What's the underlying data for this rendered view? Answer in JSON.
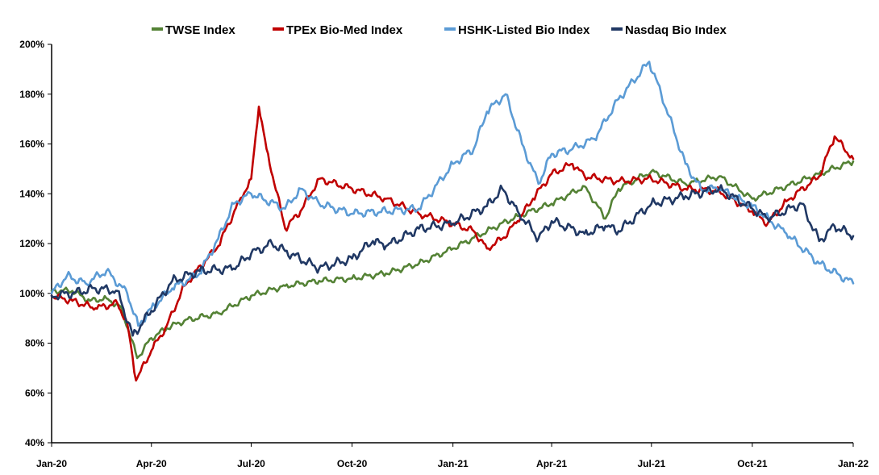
{
  "chart_data": {
    "type": "line",
    "title": "",
    "xlabel": "",
    "ylabel": "",
    "ylim": [
      0.4,
      2.0
    ],
    "y_ticks": [
      0.4,
      0.6,
      0.8,
      1.0,
      1.2,
      1.4,
      1.6,
      1.8,
      2.0
    ],
    "y_tick_labels": [
      "40%",
      "60%",
      "80%",
      "100%",
      "120%",
      "140%",
      "160%",
      "180%",
      "200%"
    ],
    "xlim": [
      "2020-01-01",
      "2022-01-01"
    ],
    "x_ticks": [
      "2020-01-01",
      "2020-04-01",
      "2020-07-01",
      "2020-10-01",
      "2021-01-01",
      "2021-04-01",
      "2021-07-01",
      "2021-10-01",
      "2022-01-01"
    ],
    "x_tick_labels": [
      "Jan-20",
      "Apr-20",
      "Jul-20",
      "Oct-20",
      "Jan-21",
      "Apr-21",
      "Jul-21",
      "Oct-21",
      "Jan-22"
    ],
    "grid": false,
    "legend_position": "top",
    "series": [
      {
        "name": "TWSE Index",
        "color": "#548235",
        "points": [
          [
            "2020-01-01",
            1.01
          ],
          [
            "2020-01-20",
            1.01
          ],
          [
            "2020-02-05",
            0.97
          ],
          [
            "2020-02-20",
            0.98
          ],
          [
            "2020-03-05",
            0.94
          ],
          [
            "2020-03-19",
            0.74
          ],
          [
            "2020-04-01",
            0.82
          ],
          [
            "2020-04-15",
            0.86
          ],
          [
            "2020-05-01",
            0.89
          ],
          [
            "2020-06-01",
            0.92
          ],
          [
            "2020-07-01",
            0.99
          ],
          [
            "2020-08-01",
            1.03
          ],
          [
            "2020-09-01",
            1.05
          ],
          [
            "2020-10-01",
            1.06
          ],
          [
            "2020-11-01",
            1.08
          ],
          [
            "2020-12-01",
            1.12
          ],
          [
            "2021-01-01",
            1.18
          ],
          [
            "2021-02-01",
            1.25
          ],
          [
            "2021-03-01",
            1.31
          ],
          [
            "2021-04-01",
            1.36
          ],
          [
            "2021-05-01",
            1.43
          ],
          [
            "2021-05-20",
            1.3
          ],
          [
            "2021-06-01",
            1.42
          ],
          [
            "2021-07-01",
            1.49
          ],
          [
            "2021-08-01",
            1.44
          ],
          [
            "2021-09-01",
            1.47
          ],
          [
            "2021-10-01",
            1.38
          ],
          [
            "2021-11-01",
            1.43
          ],
          [
            "2021-12-01",
            1.48
          ],
          [
            "2022-01-01",
            1.53
          ]
        ]
      },
      {
        "name": "TPEx Bio-Med Index",
        "color": "#C00000",
        "points": [
          [
            "2020-01-01",
            0.99
          ],
          [
            "2020-01-20",
            0.97
          ],
          [
            "2020-02-10",
            0.94
          ],
          [
            "2020-03-01",
            0.96
          ],
          [
            "2020-03-10",
            0.88
          ],
          [
            "2020-03-18",
            0.65
          ],
          [
            "2020-04-01",
            0.77
          ],
          [
            "2020-04-15",
            0.87
          ],
          [
            "2020-05-01",
            1.03
          ],
          [
            "2020-05-20",
            1.13
          ],
          [
            "2020-06-01",
            1.19
          ],
          [
            "2020-06-20",
            1.37
          ],
          [
            "2020-07-01",
            1.46
          ],
          [
            "2020-07-08",
            1.75
          ],
          [
            "2020-07-15",
            1.58
          ],
          [
            "2020-08-01",
            1.26
          ],
          [
            "2020-08-15",
            1.33
          ],
          [
            "2020-09-01",
            1.46
          ],
          [
            "2020-10-01",
            1.42
          ],
          [
            "2020-11-01",
            1.38
          ],
          [
            "2020-12-01",
            1.32
          ],
          [
            "2021-01-01",
            1.28
          ],
          [
            "2021-01-20",
            1.25
          ],
          [
            "2021-02-01",
            1.18
          ],
          [
            "2021-02-15",
            1.22
          ],
          [
            "2021-03-01",
            1.29
          ],
          [
            "2021-03-15",
            1.38
          ],
          [
            "2021-04-01",
            1.48
          ],
          [
            "2021-04-20",
            1.52
          ],
          [
            "2021-05-01",
            1.47
          ],
          [
            "2021-06-01",
            1.45
          ],
          [
            "2021-07-01",
            1.46
          ],
          [
            "2021-08-01",
            1.42
          ],
          [
            "2021-09-01",
            1.41
          ],
          [
            "2021-10-01",
            1.33
          ],
          [
            "2021-10-15",
            1.28
          ],
          [
            "2021-11-01",
            1.37
          ],
          [
            "2021-12-01",
            1.47
          ],
          [
            "2021-12-15",
            1.63
          ],
          [
            "2022-01-01",
            1.54
          ]
        ]
      },
      {
        "name": "HSHK-Listed Bio Index",
        "color": "#5B9BD5",
        "points": [
          [
            "2020-01-01",
            1.0
          ],
          [
            "2020-01-15",
            1.07
          ],
          [
            "2020-02-01",
            1.04
          ],
          [
            "2020-02-20",
            1.09
          ],
          [
            "2020-03-10",
            1.0
          ],
          [
            "2020-03-20",
            0.87
          ],
          [
            "2020-04-01",
            0.94
          ],
          [
            "2020-04-20",
            1.02
          ],
          [
            "2020-05-15",
            1.08
          ],
          [
            "2020-06-01",
            1.22
          ],
          [
            "2020-06-15",
            1.36
          ],
          [
            "2020-07-01",
            1.4
          ],
          [
            "2020-08-01",
            1.34
          ],
          [
            "2020-08-15",
            1.42
          ],
          [
            "2020-09-01",
            1.36
          ],
          [
            "2020-10-01",
            1.32
          ],
          [
            "2020-11-01",
            1.33
          ],
          [
            "2020-12-01",
            1.34
          ],
          [
            "2021-01-01",
            1.52
          ],
          [
            "2021-01-20",
            1.58
          ],
          [
            "2021-02-01",
            1.73
          ],
          [
            "2021-02-18",
            1.8
          ],
          [
            "2021-03-05",
            1.6
          ],
          [
            "2021-03-20",
            1.44
          ],
          [
            "2021-04-01",
            1.56
          ],
          [
            "2021-04-20",
            1.58
          ],
          [
            "2021-05-10",
            1.62
          ],
          [
            "2021-06-01",
            1.78
          ],
          [
            "2021-06-29",
            1.93
          ],
          [
            "2021-07-10",
            1.8
          ],
          [
            "2021-08-01",
            1.52
          ],
          [
            "2021-08-15",
            1.42
          ],
          [
            "2021-09-01",
            1.42
          ],
          [
            "2021-10-01",
            1.35
          ],
          [
            "2021-11-01",
            1.24
          ],
          [
            "2021-12-01",
            1.12
          ],
          [
            "2022-01-01",
            1.04
          ]
        ]
      },
      {
        "name": "Nasdaq Bio Index",
        "color": "#203864",
        "points": [
          [
            "2020-01-01",
            0.99
          ],
          [
            "2020-01-20",
            1.0
          ],
          [
            "2020-02-10",
            1.02
          ],
          [
            "2020-03-01",
            1.01
          ],
          [
            "2020-03-15",
            0.83
          ],
          [
            "2020-04-01",
            0.93
          ],
          [
            "2020-04-20",
            1.05
          ],
          [
            "2020-05-15",
            1.09
          ],
          [
            "2020-06-15",
            1.1
          ],
          [
            "2020-07-01",
            1.16
          ],
          [
            "2020-07-20",
            1.2
          ],
          [
            "2020-08-01",
            1.17
          ],
          [
            "2020-09-01",
            1.1
          ],
          [
            "2020-10-01",
            1.14
          ],
          [
            "2020-10-20",
            1.21
          ],
          [
            "2020-11-01",
            1.19
          ],
          [
            "2020-12-01",
            1.26
          ],
          [
            "2021-01-01",
            1.28
          ],
          [
            "2021-02-01",
            1.35
          ],
          [
            "2021-02-15",
            1.42
          ],
          [
            "2021-03-01",
            1.33
          ],
          [
            "2021-03-20",
            1.22
          ],
          [
            "2021-04-01",
            1.29
          ],
          [
            "2021-05-01",
            1.24
          ],
          [
            "2021-05-20",
            1.27
          ],
          [
            "2021-06-01",
            1.25
          ],
          [
            "2021-07-01",
            1.36
          ],
          [
            "2021-08-01",
            1.39
          ],
          [
            "2021-09-01",
            1.42
          ],
          [
            "2021-10-01",
            1.34
          ],
          [
            "2021-10-15",
            1.3
          ],
          [
            "2021-11-15",
            1.36
          ],
          [
            "2021-12-01",
            1.21
          ],
          [
            "2021-12-15",
            1.27
          ],
          [
            "2022-01-01",
            1.23
          ]
        ]
      }
    ]
  }
}
